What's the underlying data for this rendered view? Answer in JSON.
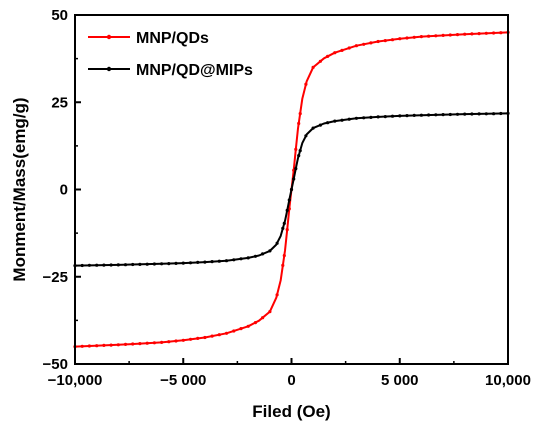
{
  "chart_data": {
    "type": "line",
    "title": "",
    "xlabel": "Filed (Oe)",
    "ylabel": "Monment/Mass(emg/g)",
    "xlim": [
      -10000,
      10000
    ],
    "ylim": [
      -50,
      50
    ],
    "xticks": [
      {
        "value": -10000,
        "label": "−10,000"
      },
      {
        "value": -5000,
        "label": "−5 000"
      },
      {
        "value": 0,
        "label": "0"
      },
      {
        "value": 5000,
        "label": "5 000"
      },
      {
        "value": 10000,
        "label": "10,000"
      }
    ],
    "yticks": [
      {
        "value": 50,
        "label": "50"
      },
      {
        "value": 25,
        "label": "25"
      },
      {
        "value": 0,
        "label": "0"
      },
      {
        "value": -25,
        "label": "−25"
      },
      {
        "value": -50,
        "label": "−50"
      }
    ],
    "grid": false,
    "legend": "top-left",
    "series": [
      {
        "name": "MNP/QDs",
        "color": "#ff0000",
        "x": [
          -10000,
          -8000,
          -6000,
          -5000,
          -4000,
          -3000,
          -2000,
          -1500,
          -1000,
          -700,
          -500,
          -300,
          -200,
          -100,
          0,
          100,
          200,
          300,
          500,
          700,
          1000,
          1500,
          2000,
          3000,
          4000,
          5000,
          6000,
          8000,
          10000
        ],
        "y": [
          -45,
          -44.5,
          -43.8,
          -43.2,
          -42.4,
          -41.2,
          -39.2,
          -37.6,
          -35,
          -31,
          -26,
          -17.5,
          -11.5,
          -5.5,
          0,
          5.5,
          11.5,
          17.5,
          26,
          31,
          35,
          37.6,
          39.2,
          41.2,
          42.4,
          43.2,
          43.8,
          44.5,
          45
        ]
      },
      {
        "name": "MNP/QD@MIPs",
        "color": "#000000",
        "x": [
          -10000,
          -8000,
          -6000,
          -5000,
          -4000,
          -3000,
          -2000,
          -1500,
          -1000,
          -700,
          -500,
          -300,
          -200,
          -100,
          0,
          100,
          200,
          300,
          500,
          700,
          1000,
          1500,
          2000,
          3000,
          4000,
          5000,
          6000,
          8000,
          10000
        ],
        "y": [
          -21.8,
          -21.6,
          -21.3,
          -21.1,
          -20.8,
          -20.4,
          -19.6,
          -18.9,
          -17.6,
          -15.8,
          -13.3,
          -9,
          -6,
          -3,
          0,
          3,
          6,
          9,
          13.3,
          15.8,
          17.6,
          18.9,
          19.6,
          20.4,
          20.8,
          21.1,
          21.3,
          21.6,
          21.8
        ]
      }
    ]
  }
}
